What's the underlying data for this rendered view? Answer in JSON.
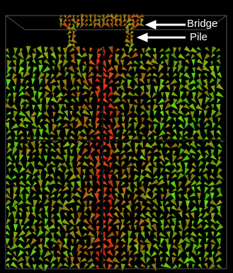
{
  "annotations": [
    {
      "label": "Bridge"
    },
    {
      "label": "Pile"
    }
  ]
}
